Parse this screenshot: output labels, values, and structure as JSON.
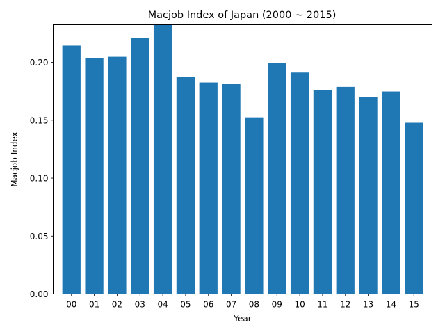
{
  "chart_data": {
    "type": "bar",
    "title": "Macjob Index of Japan (2000 ~ 2015)",
    "xlabel": "Year",
    "ylabel": "Macjob Index",
    "categories": [
      "00",
      "01",
      "02",
      "03",
      "04",
      "05",
      "06",
      "07",
      "08",
      "09",
      "10",
      "11",
      "12",
      "13",
      "14",
      "15"
    ],
    "values": [
      0.2145,
      0.2038,
      0.2048,
      0.221,
      0.2325,
      0.1872,
      0.1826,
      0.1817,
      0.1525,
      0.1992,
      0.1912,
      0.1758,
      0.1788,
      0.1698,
      0.1748,
      0.1478
    ],
    "ylim": [
      0,
      0.2325
    ],
    "yticks": [
      "0.00",
      "0.05",
      "0.10",
      "0.15",
      "0.20"
    ],
    "bar_color": "#1f77b4",
    "grid": false,
    "legend": "none"
  }
}
